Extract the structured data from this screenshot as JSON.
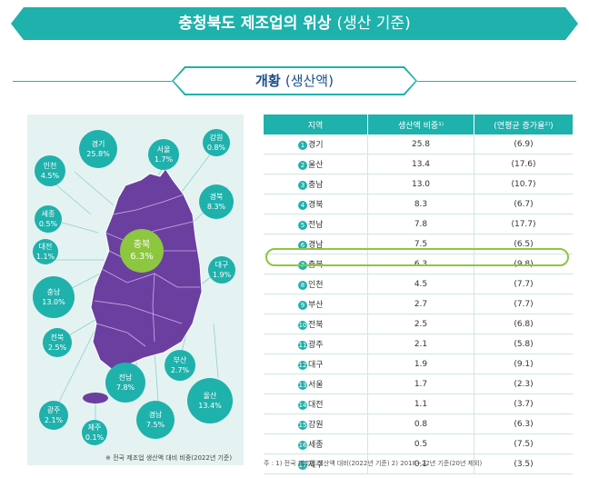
{
  "title": {
    "main": "충청북도 제조업의 위상",
    "sub": "(생산 기준)"
  },
  "section": {
    "main": "개황",
    "sub": "(생산액)"
  },
  "map": {
    "note": "※ 전국 제조업 생산액 대비 비중(2022년 기준)",
    "bubbles": [
      {
        "name": "경기",
        "value": "25.8%"
      },
      {
        "name": "서울",
        "value": "1.7%"
      },
      {
        "name": "강원",
        "value": "0.8%"
      },
      {
        "name": "인천",
        "value": "4.5%"
      },
      {
        "name": "경북",
        "value": "8.3%"
      },
      {
        "name": "세종",
        "value": "0.5%"
      },
      {
        "name": "충북",
        "value": "6.3%"
      },
      {
        "name": "대전",
        "value": "1.1%"
      },
      {
        "name": "대구",
        "value": "1.9%"
      },
      {
        "name": "충남",
        "value": "13.0%"
      },
      {
        "name": "전북",
        "value": "2.5%"
      },
      {
        "name": "부산",
        "value": "2.7%"
      },
      {
        "name": "전남",
        "value": "7.8%"
      },
      {
        "name": "울산",
        "value": "13.4%"
      },
      {
        "name": "광주",
        "value": "2.1%"
      },
      {
        "name": "경남",
        "value": "7.5%"
      },
      {
        "name": "제주",
        "value": "0.1%"
      }
    ]
  },
  "table": {
    "headers": [
      "지역",
      "생산액 비중¹⁾",
      "(연평균 증가율²⁾)"
    ],
    "rows": [
      {
        "n": "1",
        "region": "경기",
        "share": "25.8",
        "growth": "(6.9)"
      },
      {
        "n": "2",
        "region": "울산",
        "share": "13.4",
        "growth": "(17.6)"
      },
      {
        "n": "3",
        "region": "충남",
        "share": "13.0",
        "growth": "(10.7)"
      },
      {
        "n": "4",
        "region": "경북",
        "share": "8.3",
        "growth": "(6.7)"
      },
      {
        "n": "5",
        "region": "전남",
        "share": "7.8",
        "growth": "(17.7)"
      },
      {
        "n": "6",
        "region": "경남",
        "share": "7.5",
        "growth": "(6.5)"
      },
      {
        "n": "7",
        "region": "충북",
        "share": "6.3",
        "growth": "(9.8)"
      },
      {
        "n": "8",
        "region": "인천",
        "share": "4.5",
        "growth": "(7.7)"
      },
      {
        "n": "9",
        "region": "부산",
        "share": "2.7",
        "growth": "(7.7)"
      },
      {
        "n": "10",
        "region": "전북",
        "share": "2.5",
        "growth": "(6.8)"
      },
      {
        "n": "11",
        "region": "광주",
        "share": "2.1",
        "growth": "(5.8)"
      },
      {
        "n": "12",
        "region": "대구",
        "share": "1.9",
        "growth": "(9.1)"
      },
      {
        "n": "13",
        "region": "서울",
        "share": "1.7",
        "growth": "(2.3)"
      },
      {
        "n": "14",
        "region": "대전",
        "share": "1.1",
        "growth": "(3.7)"
      },
      {
        "n": "15",
        "region": "강원",
        "share": "0.8",
        "growth": "(6.3)"
      },
      {
        "n": "16",
        "region": "세종",
        "share": "0.5",
        "growth": "(7.5)"
      },
      {
        "n": "17",
        "region": "제주",
        "share": "0.1",
        "growth": "(3.5)"
      }
    ],
    "footnote": "주 : 1) 전국 제조업 생산액 대비(2022년 기준)  2) 2018~22년 기준(20년 제외)"
  },
  "colors": {
    "accent": "#1fb1ac",
    "highlight": "#8dc63f",
    "map": "#6b3fa0"
  }
}
